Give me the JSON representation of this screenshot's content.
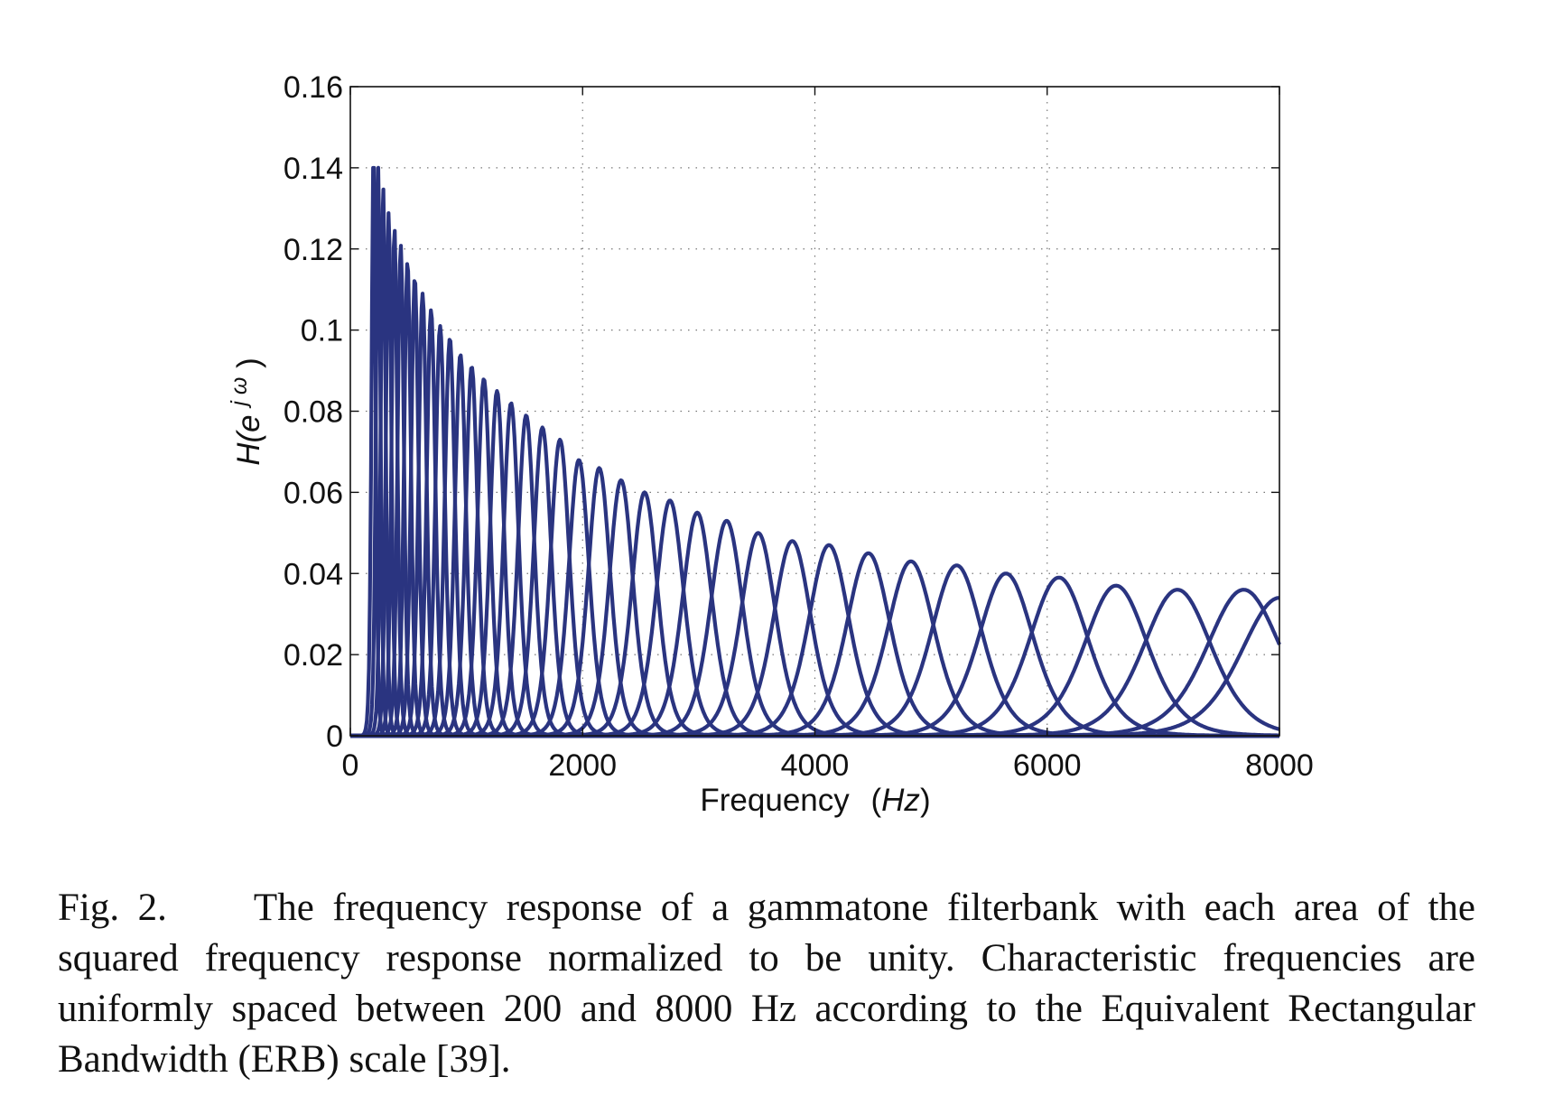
{
  "chart_data": {
    "type": "line",
    "xlabel": "Frequency (Hz)",
    "xlabel_main": "Frequency",
    "xlabel_unit": "Hz",
    "ylabel_base": "H(e",
    "ylabel_sup": "j ω",
    "ylabel_close": ")",
    "xlim": [
      0,
      8000
    ],
    "ylim": [
      0,
      0.16
    ],
    "x_ticks": [
      0,
      2000,
      4000,
      6000,
      8000
    ],
    "x_tick_labels": [
      "0",
      "2000",
      "4000",
      "6000",
      "8000"
    ],
    "y_ticks": [
      0,
      0.02,
      0.04,
      0.06,
      0.08,
      0.1,
      0.12,
      0.14,
      0.16
    ],
    "y_tick_labels": [
      "0",
      "0.02",
      "0.04",
      "0.06",
      "0.08",
      "0.1",
      "0.12",
      "0.14",
      "0.16"
    ],
    "grid": true,
    "line_color": "#2a3480",
    "series": [
      {
        "cf": 200,
        "peak": 0.145
      },
      {
        "cf": 240,
        "peak": 0.14
      },
      {
        "cf": 283,
        "peak": 0.135
      },
      {
        "cf": 330,
        "peak": 0.129
      },
      {
        "cf": 380,
        "peak": 0.125
      },
      {
        "cf": 434,
        "peak": 0.121
      },
      {
        "cf": 492,
        "peak": 0.117
      },
      {
        "cf": 555,
        "peak": 0.113
      },
      {
        "cf": 622,
        "peak": 0.109
      },
      {
        "cf": 695,
        "peak": 0.105
      },
      {
        "cf": 773,
        "peak": 0.101
      },
      {
        "cf": 857,
        "peak": 0.098
      },
      {
        "cf": 948,
        "peak": 0.094
      },
      {
        "cf": 1045,
        "peak": 0.091
      },
      {
        "cf": 1150,
        "peak": 0.088
      },
      {
        "cf": 1263,
        "peak": 0.085
      },
      {
        "cf": 1384,
        "peak": 0.082
      },
      {
        "cf": 1514,
        "peak": 0.079
      },
      {
        "cf": 1654,
        "peak": 0.076
      },
      {
        "cf": 1805,
        "peak": 0.073
      },
      {
        "cf": 1968,
        "peak": 0.068
      },
      {
        "cf": 2143,
        "peak": 0.066
      },
      {
        "cf": 2331,
        "peak": 0.063
      },
      {
        "cf": 2534,
        "peak": 0.06
      },
      {
        "cf": 2752,
        "peak": 0.058
      },
      {
        "cf": 2987,
        "peak": 0.055
      },
      {
        "cf": 3240,
        "peak": 0.053
      },
      {
        "cf": 3512,
        "peak": 0.05
      },
      {
        "cf": 3805,
        "peak": 0.048
      },
      {
        "cf": 4121,
        "peak": 0.047
      },
      {
        "cf": 4461,
        "peak": 0.045
      },
      {
        "cf": 4827,
        "peak": 0.043
      },
      {
        "cf": 5221,
        "peak": 0.042
      },
      {
        "cf": 5645,
        "peak": 0.04
      },
      {
        "cf": 6101,
        "peak": 0.039
      },
      {
        "cf": 6593,
        "peak": 0.037
      },
      {
        "cf": 7122,
        "peak": 0.036
      },
      {
        "cf": 7692,
        "peak": 0.036
      },
      {
        "cf": 8000,
        "peak": 0.034
      }
    ]
  },
  "caption": {
    "label": "Fig. 2.",
    "text": "The frequency response of a gammatone filterbank with each area of the squared frequency response normalized to be unity. Characteristic frequencies are uniformly spaced between 200 and 8000 Hz according to the Equivalent Rectangular Bandwidth (ERB) scale [39]."
  }
}
